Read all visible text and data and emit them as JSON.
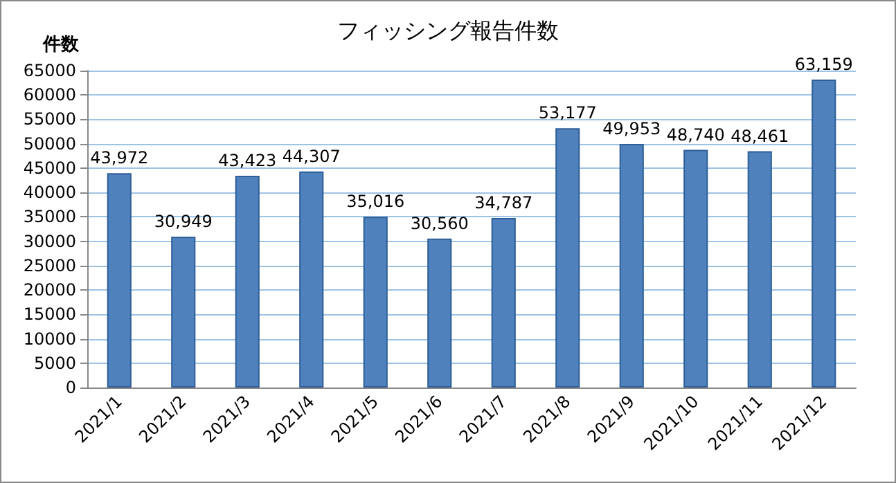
{
  "chart_data": {
    "type": "bar",
    "title": "フィッシング報告件数",
    "ylabel": "件数",
    "categories": [
      "2021/1",
      "2021/2",
      "2021/3",
      "2021/4",
      "2021/5",
      "2021/6",
      "2021/7",
      "2021/8",
      "2021/9",
      "2021/10",
      "2021/11",
      "2021/12"
    ],
    "values": [
      43972,
      30949,
      43423,
      44307,
      35016,
      30560,
      34787,
      53177,
      49953,
      48740,
      48461,
      63159
    ],
    "value_labels": [
      "43,972",
      "30,949",
      "43,423",
      "44,307",
      "35,016",
      "30,560",
      "34,787",
      "53,177",
      "49,953",
      "48,740",
      "48,461",
      "63,159"
    ],
    "color": "#4f81bd",
    "ylim": [
      0,
      65000
    ],
    "yticks": [
      0,
      5000,
      10000,
      15000,
      20000,
      25000,
      30000,
      35000,
      40000,
      45000,
      50000,
      55000,
      60000,
      65000
    ],
    "grid": "y"
  }
}
